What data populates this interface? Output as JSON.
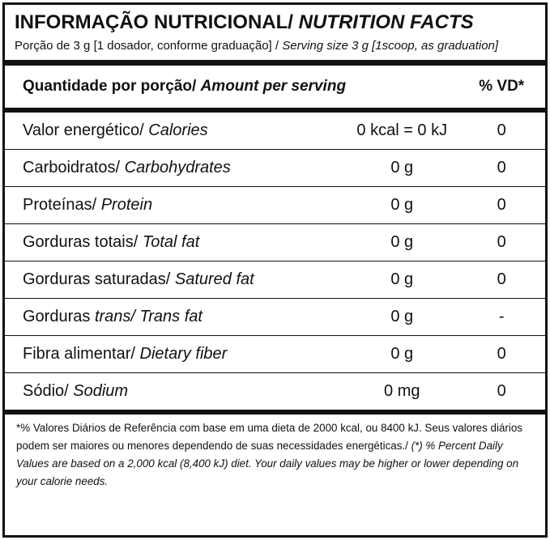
{
  "header": {
    "title_pt": "INFORMAÇÃO NUTRICIONAL/ ",
    "title_en": "NUTRITION FACTS",
    "serving_pt": "Porção de 3 g  [1 dosador, conforme graduação] / ",
    "serving_en": "Serving size 3 g  [1scoop, as graduation]"
  },
  "table": {
    "head": {
      "pt": "Quantidade por porção/ ",
      "en": "Amount per serving",
      "dv": "% VD*"
    },
    "rows": [
      {
        "pt": "Valor energético/ ",
        "en": "Calories",
        "amount": "0 kcal = 0 kJ",
        "dv": "0"
      },
      {
        "pt": "Carboidratos/ ",
        "en": "Carbohydrates",
        "amount": "0 g",
        "dv": "0"
      },
      {
        "pt": "Proteínas/ ",
        "en": "Protein",
        "amount": "0 g",
        "dv": "0"
      },
      {
        "pt": "Gorduras totais/ ",
        "en": "Total fat",
        "amount": "0 g",
        "dv": "0"
      },
      {
        "pt": "Gorduras saturadas/ ",
        "en": "Satured fat",
        "amount": "0 g",
        "dv": "0"
      },
      {
        "pt": "Gorduras ",
        "en": "trans/ Trans fat",
        "amount": "0 g",
        "dv": "-"
      },
      {
        "pt": "Fibra alimentar/ ",
        "en": "Dietary fiber",
        "amount": "0 g",
        "dv": "0"
      },
      {
        "pt": "Sódio/ ",
        "en": "Sodium",
        "amount": "0 mg",
        "dv": "0"
      }
    ]
  },
  "footnote": {
    "pt": "*% Valores Diários de Referência com base em uma dieta de 2000 kcal, ou 8400 kJ. Seus valores diários podem ser maiores ou menores dependendo de suas necessidades energéticas./ ",
    "en": "(*) % Percent Daily Values are based on a 2,000 kcal (8,400 kJ) diet. Your daily values may be higher or lower depending on your calorie needs."
  }
}
